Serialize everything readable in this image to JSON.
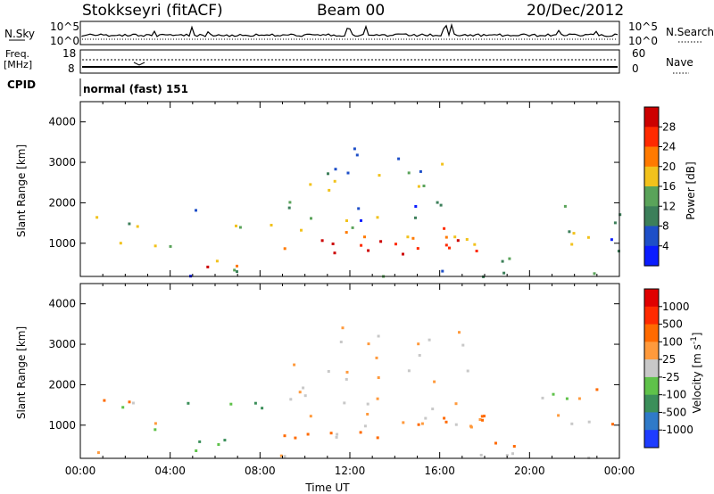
{
  "header": {
    "station": "Stokkseyri (fitACF)",
    "beam": "Beam 00",
    "date": "20/Dec/2012"
  },
  "side_labels": {
    "nsky": "N.Sky",
    "freq_line1": "Freq.",
    "freq_line2": "[MHz]",
    "cpid": "CPID",
    "nsearch": "N.Search",
    "nave": "Nave"
  },
  "strip_ticks": {
    "noise_left": [
      "10^5",
      "10^0"
    ],
    "noise_right": [
      "10^5",
      "10^0"
    ],
    "freq_left": [
      "18",
      "8"
    ],
    "nave_right": [
      "60",
      "0"
    ]
  },
  "cpid_text": "normal (fast) 151",
  "chart_data": [
    {
      "type": "heatmap",
      "name": "power",
      "ylabel": "Slant Range [km]",
      "ylim": [
        180,
        4500
      ],
      "yticks": [
        "1000",
        "2000",
        "3000",
        "4000"
      ],
      "xlim": [
        0,
        24
      ],
      "xlabel": "Time UT",
      "colorbar": {
        "label": "Power [dB]",
        "ticks": [
          "4",
          "8",
          "12",
          "16",
          "20",
          "24",
          "28"
        ],
        "colors": [
          "#0a1cff",
          "#1e4fc8",
          "#3c7f5a",
          "#5aa35a",
          "#f2c21c",
          "#ff7a00",
          "#ff2a00",
          "#cc0000"
        ]
      }
    },
    {
      "type": "heatmap",
      "name": "velocity",
      "ylabel": "Slant Range [km]",
      "ylim": [
        180,
        4500
      ],
      "yticks": [
        "1000",
        "2000",
        "3000",
        "4000"
      ],
      "xlim": [
        0,
        24
      ],
      "xlabel": "Time UT",
      "xticks": [
        "00:00",
        "04:00",
        "08:00",
        "12:00",
        "16:00",
        "20:00",
        "00:00"
      ],
      "colorbar": {
        "label_text": "Velocity",
        "label_unit_main": "[m s",
        "label_unit_exp": "-1",
        "label_unit_end": "]",
        "ticks": [
          "1000",
          "500",
          "100",
          "25",
          "-25",
          "-100",
          "-500",
          "-1000"
        ],
        "colors": [
          "#1e3cff",
          "#2f7ac8",
          "#3b8f5a",
          "#5fc24a",
          "#c8c8c8",
          "#ff9a3c",
          "#ff6a00",
          "#ff2a00",
          "#e00000"
        ]
      }
    }
  ]
}
